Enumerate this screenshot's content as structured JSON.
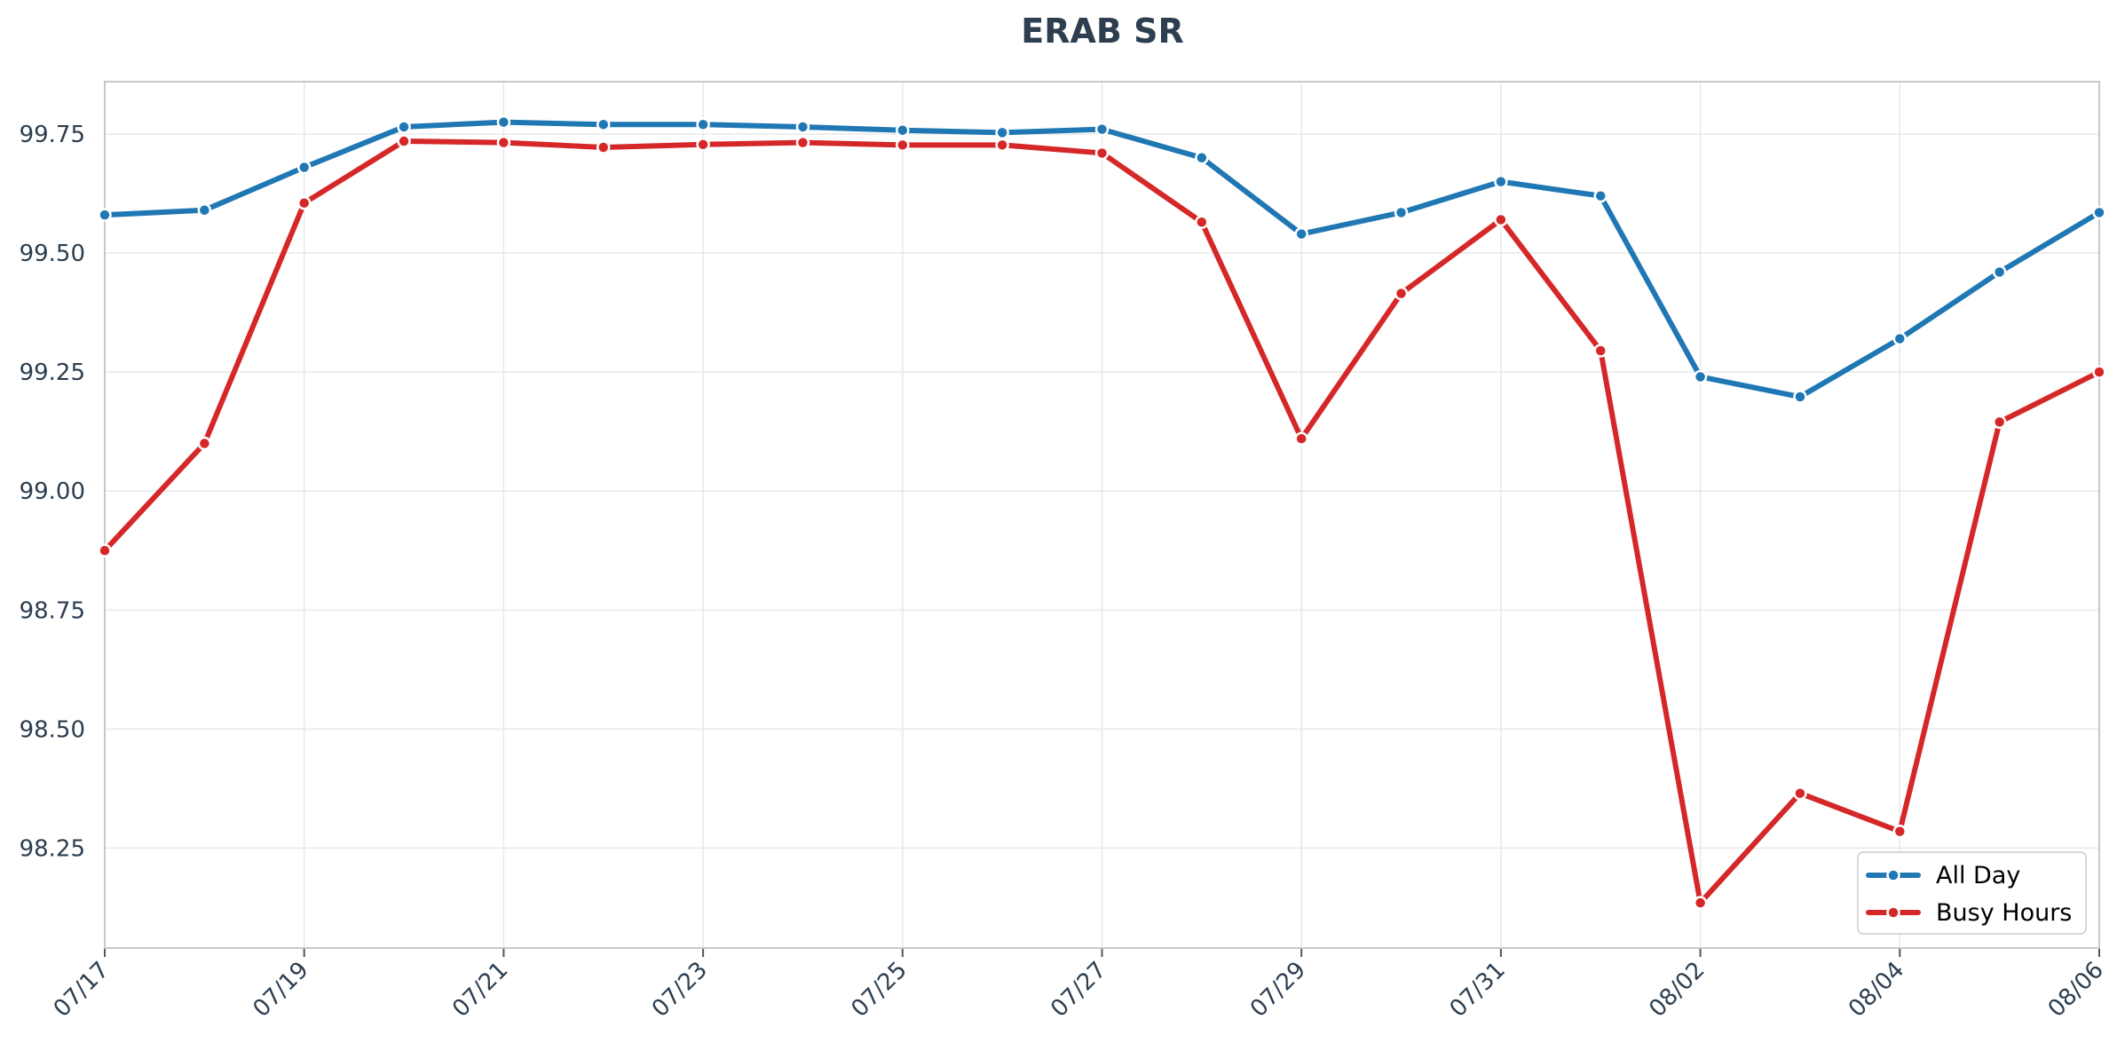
{
  "chart_data": {
    "type": "line",
    "title": "ERAB SR",
    "xlabel": "",
    "ylabel": "",
    "x": [
      "07/17",
      "07/18",
      "07/19",
      "07/20",
      "07/21",
      "07/22",
      "07/23",
      "07/24",
      "07/25",
      "07/26",
      "07/27",
      "07/28",
      "07/29",
      "07/30",
      "07/31",
      "08/01",
      "08/02",
      "08/03",
      "08/04",
      "08/05",
      "08/06"
    ],
    "x_tick_labels": [
      "07/17",
      "07/19",
      "07/21",
      "07/23",
      "07/25",
      "07/27",
      "07/29",
      "07/31",
      "08/02",
      "08/04",
      "08/06"
    ],
    "y_tick_labels": [
      "98.25",
      "98.50",
      "98.75",
      "99.00",
      "99.25",
      "99.50",
      "99.75"
    ],
    "ylim": [
      98.04,
      99.86
    ],
    "grid": true,
    "legend_position": "bottom-right",
    "series": [
      {
        "name": "All Day",
        "color": "#1f77b4",
        "values": [
          99.58,
          99.59,
          99.68,
          99.765,
          99.775,
          99.77,
          99.77,
          99.765,
          99.758,
          99.753,
          99.76,
          99.7,
          99.54,
          99.585,
          99.65,
          99.62,
          99.24,
          99.198,
          99.32,
          99.46,
          99.585
        ]
      },
      {
        "name": "Busy Hours",
        "color": "#d62728",
        "values": [
          98.875,
          99.1,
          99.605,
          99.735,
          99.732,
          99.722,
          99.728,
          99.732,
          99.727,
          99.727,
          99.71,
          99.565,
          99.11,
          99.415,
          99.57,
          99.295,
          98.135,
          98.365,
          98.285,
          99.145,
          99.25
        ]
      }
    ]
  }
}
